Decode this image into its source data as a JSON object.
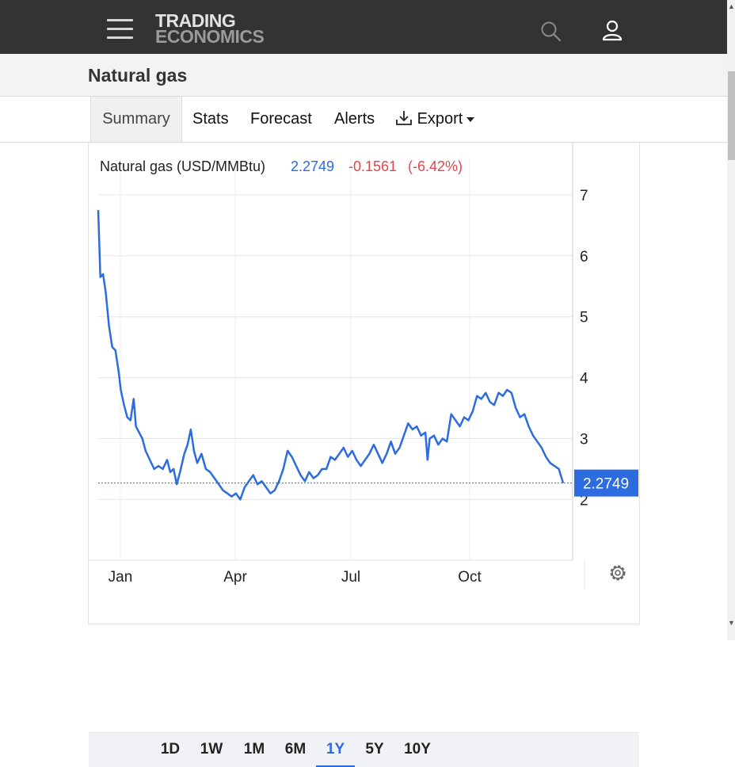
{
  "header": {
    "logo_line1": "TRADING",
    "logo_line2": "ECONOMICS",
    "menu_icon": "hamburger-menu-icon",
    "search_icon": "search-icon",
    "user_icon": "user-icon"
  },
  "page": {
    "title": "Natural gas"
  },
  "tabs": [
    {
      "label": "Summary",
      "active": true
    },
    {
      "label": "Stats"
    },
    {
      "label": "Forecast"
    },
    {
      "label": "Alerts"
    },
    {
      "label": "Export",
      "icon": "download-icon",
      "dropdown": true
    }
  ],
  "legend": {
    "name": "Natural gas (USD/MMBtu)",
    "value": "2.2749",
    "change": "-0.1561",
    "change_pct": "(-6.42%)"
  },
  "colors": {
    "line": "#2d6be0",
    "negative": "#e0474c",
    "label_bg": "#2d6be0"
  },
  "range_buttons": [
    "1D",
    "1W",
    "1M",
    "6M",
    "1Y",
    "5Y",
    "10Y"
  ],
  "active_range": "1Y",
  "settings_icon": "gear-icon",
  "chart_data": {
    "type": "line",
    "title": "",
    "xlabel": "",
    "ylabel": "",
    "x_ticks": [
      "Jan",
      "Apr",
      "Jul",
      "Oct"
    ],
    "y_ticks": [
      2,
      3,
      4,
      5,
      6,
      7
    ],
    "ylim": [
      1,
      7
    ],
    "y_axis_side": "right",
    "grid": true,
    "last_value_label": "2.2749",
    "x_unit": "weeks from start of displayed period",
    "series": [
      {
        "name": "Natural gas (USD/MMBtu)",
        "points": [
          [
            0,
            6.75
          ],
          [
            0.2,
            5.65
          ],
          [
            0.45,
            5.7
          ],
          [
            0.7,
            5.4
          ],
          [
            1.0,
            4.85
          ],
          [
            1.3,
            4.5
          ],
          [
            1.6,
            4.45
          ],
          [
            1.9,
            4.1
          ],
          [
            2.1,
            3.8
          ],
          [
            2.4,
            3.55
          ],
          [
            2.7,
            3.35
          ],
          [
            3.0,
            3.3
          ],
          [
            3.3,
            3.65
          ],
          [
            3.5,
            3.2
          ],
          [
            3.8,
            3.1
          ],
          [
            4.1,
            3.0
          ],
          [
            4.4,
            2.8
          ],
          [
            4.8,
            2.65
          ],
          [
            5.2,
            2.5
          ],
          [
            5.6,
            2.55
          ],
          [
            6.0,
            2.5
          ],
          [
            6.4,
            2.65
          ],
          [
            6.7,
            2.45
          ],
          [
            7.0,
            2.5
          ],
          [
            7.3,
            2.25
          ],
          [
            7.6,
            2.45
          ],
          [
            8.0,
            2.75
          ],
          [
            8.3,
            2.9
          ],
          [
            8.6,
            3.15
          ],
          [
            8.9,
            2.8
          ],
          [
            9.2,
            2.6
          ],
          [
            9.6,
            2.75
          ],
          [
            10.0,
            2.5
          ],
          [
            10.4,
            2.45
          ],
          [
            10.8,
            2.35
          ],
          [
            11.2,
            2.25
          ],
          [
            11.6,
            2.15
          ],
          [
            12.0,
            2.1
          ],
          [
            12.4,
            2.05
          ],
          [
            12.8,
            2.1
          ],
          [
            13.2,
            2.0
          ],
          [
            13.6,
            2.2
          ],
          [
            14.0,
            2.3
          ],
          [
            14.4,
            2.4
          ],
          [
            14.8,
            2.25
          ],
          [
            15.2,
            2.3
          ],
          [
            15.6,
            2.2
          ],
          [
            16.0,
            2.1
          ],
          [
            16.4,
            2.15
          ],
          [
            16.8,
            2.3
          ],
          [
            17.2,
            2.5
          ],
          [
            17.6,
            2.8
          ],
          [
            18.0,
            2.7
          ],
          [
            18.4,
            2.55
          ],
          [
            18.8,
            2.4
          ],
          [
            19.2,
            2.3
          ],
          [
            19.6,
            2.45
          ],
          [
            20.0,
            2.35
          ],
          [
            20.4,
            2.4
          ],
          [
            20.8,
            2.5
          ],
          [
            21.2,
            2.5
          ],
          [
            21.6,
            2.7
          ],
          [
            22.0,
            2.65
          ],
          [
            22.4,
            2.75
          ],
          [
            22.8,
            2.85
          ],
          [
            23.2,
            2.7
          ],
          [
            23.6,
            2.8
          ],
          [
            24.0,
            2.65
          ],
          [
            24.4,
            2.55
          ],
          [
            24.8,
            2.65
          ],
          [
            25.2,
            2.75
          ],
          [
            25.6,
            2.9
          ],
          [
            26.0,
            2.75
          ],
          [
            26.4,
            2.6
          ],
          [
            26.8,
            2.75
          ],
          [
            27.2,
            2.95
          ],
          [
            27.6,
            2.75
          ],
          [
            28.0,
            2.85
          ],
          [
            28.4,
            3.05
          ],
          [
            28.8,
            3.25
          ],
          [
            29.2,
            3.15
          ],
          [
            29.6,
            3.2
          ],
          [
            30.0,
            3.05
          ],
          [
            30.4,
            3.1
          ],
          [
            30.6,
            2.65
          ],
          [
            30.8,
            3.0
          ],
          [
            31.2,
            3.05
          ],
          [
            31.6,
            2.9
          ],
          [
            32.0,
            3.0
          ],
          [
            32.4,
            2.95
          ],
          [
            32.8,
            3.4
          ],
          [
            33.2,
            3.3
          ],
          [
            33.6,
            3.2
          ],
          [
            34.0,
            3.35
          ],
          [
            34.4,
            3.3
          ],
          [
            34.8,
            3.45
          ],
          [
            35.2,
            3.7
          ],
          [
            35.6,
            3.65
          ],
          [
            36.0,
            3.75
          ],
          [
            36.4,
            3.6
          ],
          [
            36.8,
            3.55
          ],
          [
            37.2,
            3.75
          ],
          [
            37.6,
            3.7
          ],
          [
            38.0,
            3.8
          ],
          [
            38.4,
            3.75
          ],
          [
            38.8,
            3.5
          ],
          [
            39.2,
            3.35
          ],
          [
            39.6,
            3.4
          ],
          [
            40.0,
            3.2
          ],
          [
            40.4,
            3.05
          ],
          [
            40.8,
            2.95
          ],
          [
            41.2,
            2.85
          ],
          [
            41.6,
            2.7
          ],
          [
            42.0,
            2.6
          ],
          [
            42.4,
            2.55
          ],
          [
            42.8,
            2.5
          ],
          [
            43.2,
            2.27
          ]
        ]
      }
    ]
  }
}
